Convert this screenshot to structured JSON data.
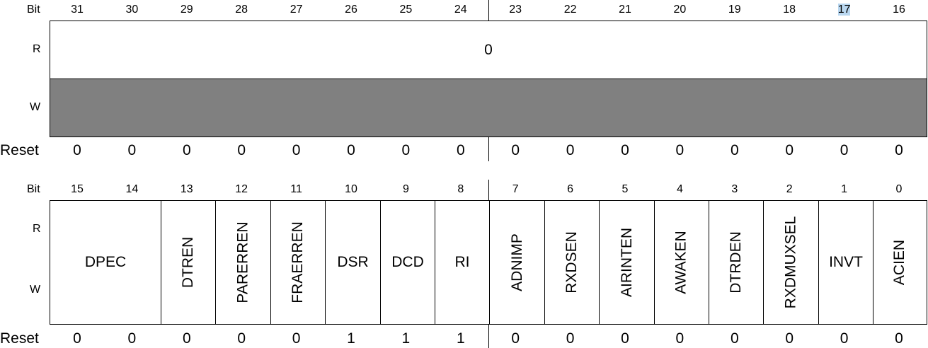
{
  "upper": {
    "bit_label": "Bit",
    "bits": [
      "31",
      "30",
      "29",
      "28",
      "27",
      "26",
      "25",
      "24",
      "23",
      "22",
      "21",
      "20",
      "19",
      "18",
      "17",
      "16"
    ],
    "row_r": "R",
    "row_w": "W",
    "r_value": "0",
    "reset_label": "Reset",
    "reset_values": [
      "0",
      "0",
      "0",
      "0",
      "0",
      "0",
      "0",
      "0",
      "0",
      "0",
      "0",
      "0",
      "0",
      "0",
      "0",
      "0"
    ],
    "w_fill_color": "#808080"
  },
  "lower": {
    "bit_label": "Bit",
    "bits": [
      "15",
      "14",
      "13",
      "12",
      "11",
      "10",
      "9",
      "8",
      "7",
      "6",
      "5",
      "4",
      "3",
      "2",
      "1",
      "0"
    ],
    "row_r": "R",
    "row_w": "W",
    "fields": [
      "DPEC",
      "DTREN",
      "PARERREN",
      "FRAERREN",
      "DSR",
      "DCD",
      "RI",
      "ADNIMP",
      "RXDSEN",
      "AIRINTEN",
      "AWAKEN",
      "DTRDEN",
      "RXDMUXSEL",
      "INVT",
      "ACIEN"
    ],
    "reset_label": "Reset",
    "reset_values": [
      "0",
      "0",
      "0",
      "0",
      "0",
      "1",
      "1",
      "1",
      "0",
      "0",
      "0",
      "0",
      "0",
      "0",
      "0",
      "0"
    ]
  }
}
